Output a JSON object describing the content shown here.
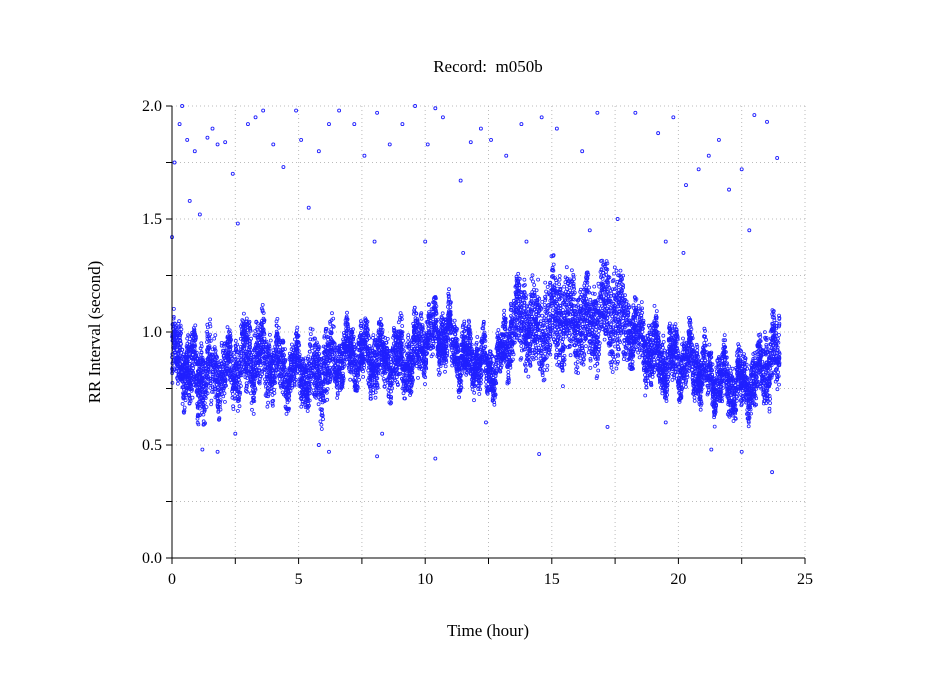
{
  "chart_data": {
    "type": "scatter",
    "title": "Record:  m050b",
    "xlabel": "Time (hour)",
    "ylabel": "RR Interval (second)",
    "xlim": [
      0,
      25
    ],
    "ylim": [
      0,
      2.0
    ],
    "xticks": [
      "0",
      "5",
      "10",
      "15",
      "20",
      "25"
    ],
    "xtick_values": [
      0,
      5,
      10,
      15,
      20,
      25
    ],
    "yticks": [
      "0.0",
      "0.5",
      "1.0",
      "1.5",
      "2.0"
    ],
    "ytick_values": [
      0,
      0.5,
      1.0,
      1.5,
      2.0
    ],
    "minor_step_x": 2.5,
    "minor_step_y": 0.25,
    "grid": true,
    "marker_color": "#2020ff",
    "series_note": "dense RR interval points; band gives approximate [time_hour, low_s, high_s] envelope",
    "band": [
      [
        0,
        0.75,
        1.05
      ],
      [
        0.5,
        0.72,
        1.0
      ],
      [
        1,
        0.62,
        0.98
      ],
      [
        1.5,
        0.65,
        1.0
      ],
      [
        2,
        0.68,
        0.95
      ],
      [
        2.5,
        0.7,
        1.0
      ],
      [
        3,
        0.72,
        1.05
      ],
      [
        3.5,
        0.72,
        1.05
      ],
      [
        4,
        0.72,
        1.0
      ],
      [
        4.5,
        0.7,
        0.95
      ],
      [
        5,
        0.72,
        0.95
      ],
      [
        5.5,
        0.65,
        0.95
      ],
      [
        6,
        0.65,
        1.0
      ],
      [
        6.5,
        0.75,
        1.02
      ],
      [
        7,
        0.78,
        1.0
      ],
      [
        7.5,
        0.78,
        1.02
      ],
      [
        8,
        0.75,
        1.02
      ],
      [
        8.5,
        0.75,
        1.0
      ],
      [
        9,
        0.72,
        1.02
      ],
      [
        9.5,
        0.75,
        1.03
      ],
      [
        10,
        0.85,
        1.1
      ],
      [
        10.5,
        0.88,
        1.12
      ],
      [
        11,
        0.85,
        1.1
      ],
      [
        11.5,
        0.75,
        1.0
      ],
      [
        12,
        0.78,
        1.0
      ],
      [
        12.5,
        0.72,
        0.95
      ],
      [
        13,
        0.78,
        0.98
      ],
      [
        13.5,
        0.88,
        1.2
      ],
      [
        14,
        0.85,
        1.25
      ],
      [
        14.5,
        0.8,
        1.2
      ],
      [
        15,
        0.85,
        1.3
      ],
      [
        15.5,
        0.85,
        1.25
      ],
      [
        16,
        0.88,
        1.25
      ],
      [
        16.5,
        0.85,
        1.2
      ],
      [
        17,
        0.9,
        1.3
      ],
      [
        17.5,
        0.85,
        1.3
      ],
      [
        18,
        0.85,
        1.2
      ],
      [
        18.5,
        0.85,
        1.1
      ],
      [
        19,
        0.75,
        1.05
      ],
      [
        19.5,
        0.72,
        1.0
      ],
      [
        20,
        0.75,
        1.0
      ],
      [
        20.5,
        0.75,
        0.98
      ],
      [
        21,
        0.7,
        0.95
      ],
      [
        21.5,
        0.68,
        0.9
      ],
      [
        22,
        0.65,
        0.9
      ],
      [
        22.5,
        0.65,
        0.9
      ],
      [
        23,
        0.65,
        0.9
      ],
      [
        23.5,
        0.7,
        1.05
      ],
      [
        24,
        0.72,
        1.05
      ]
    ],
    "outliers": [
      [
        0.0,
        1.42
      ],
      [
        0.1,
        1.75
      ],
      [
        0.3,
        1.92
      ],
      [
        0.4,
        2.0
      ],
      [
        0.6,
        1.85
      ],
      [
        0.7,
        1.58
      ],
      [
        0.9,
        1.8
      ],
      [
        1.1,
        1.52
      ],
      [
        1.4,
        1.86
      ],
      [
        1.6,
        1.9
      ],
      [
        1.8,
        1.83
      ],
      [
        2.1,
        1.84
      ],
      [
        2.4,
        1.7
      ],
      [
        2.6,
        1.48
      ],
      [
        3.0,
        1.92
      ],
      [
        3.3,
        1.95
      ],
      [
        3.6,
        1.98
      ],
      [
        4.0,
        1.83
      ],
      [
        4.4,
        1.73
      ],
      [
        4.9,
        1.98
      ],
      [
        5.1,
        1.85
      ],
      [
        5.4,
        1.55
      ],
      [
        5.8,
        1.8
      ],
      [
        6.2,
        1.92
      ],
      [
        6.6,
        1.98
      ],
      [
        7.2,
        1.92
      ],
      [
        7.6,
        1.78
      ],
      [
        8.1,
        1.97
      ],
      [
        8.6,
        1.83
      ],
      [
        9.1,
        1.92
      ],
      [
        9.6,
        2.0
      ],
      [
        10.1,
        1.83
      ],
      [
        10.4,
        1.99
      ],
      [
        10.7,
        1.95
      ],
      [
        11.4,
        1.67
      ],
      [
        11.8,
        1.84
      ],
      [
        12.2,
        1.9
      ],
      [
        12.6,
        1.85
      ],
      [
        13.2,
        1.78
      ],
      [
        13.8,
        1.92
      ],
      [
        14.6,
        1.95
      ],
      [
        15.2,
        1.9
      ],
      [
        16.2,
        1.8
      ],
      [
        16.8,
        1.97
      ],
      [
        17.6,
        1.5
      ],
      [
        18.3,
        1.97
      ],
      [
        19.2,
        1.88
      ],
      [
        19.8,
        1.95
      ],
      [
        20.3,
        1.65
      ],
      [
        20.8,
        1.72
      ],
      [
        21.2,
        1.78
      ],
      [
        21.6,
        1.85
      ],
      [
        22.0,
        1.63
      ],
      [
        22.5,
        1.72
      ],
      [
        23.0,
        1.96
      ],
      [
        23.5,
        1.93
      ],
      [
        23.9,
        1.77
      ],
      [
        1.2,
        0.48
      ],
      [
        1.8,
        0.47
      ],
      [
        2.5,
        0.55
      ],
      [
        5.8,
        0.5
      ],
      [
        6.2,
        0.47
      ],
      [
        8.1,
        0.45
      ],
      [
        8.3,
        0.55
      ],
      [
        10.4,
        0.44
      ],
      [
        12.4,
        0.6
      ],
      [
        14.5,
        0.46
      ],
      [
        17.2,
        0.58
      ],
      [
        19.5,
        0.6
      ],
      [
        21.3,
        0.48
      ],
      [
        22.5,
        0.47
      ],
      [
        23.7,
        0.38
      ],
      [
        8.0,
        1.4
      ],
      [
        10.0,
        1.4
      ],
      [
        11.5,
        1.35
      ],
      [
        14.0,
        1.4
      ],
      [
        16.5,
        1.45
      ],
      [
        19.5,
        1.4
      ],
      [
        20.2,
        1.35
      ],
      [
        22.8,
        1.45
      ]
    ]
  }
}
